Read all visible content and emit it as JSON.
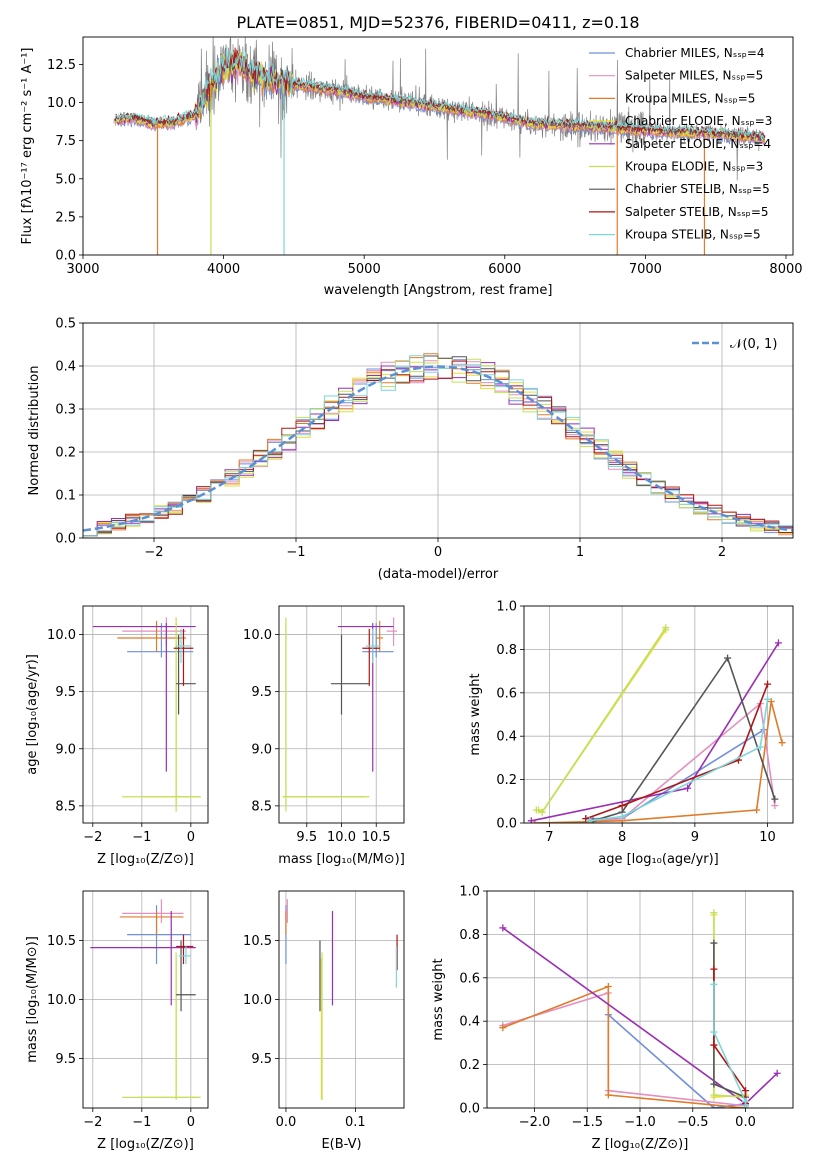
{
  "colors": {
    "chabrier_miles": "#6f8fdc",
    "salpeter_miles": "#e58fbe",
    "kroupa_miles": "#e07b2a",
    "chabrier_elodie": "#e8dc3a",
    "salpeter_elodie": "#9a2fb5",
    "kroupa_elodie": "#c2e05a",
    "chabrier_stelib": "#555555",
    "salpeter_stelib": "#b01515",
    "kroupa_stelib": "#7ed6d8",
    "data": "#7f7f7f",
    "normal": "#5b8fd6"
  },
  "chart_data": [
    {
      "type": "line",
      "title": "PLATE=0851, MJD=52376, FIBERID=0411, z=0.18",
      "xlabel": "wavelength [Angstrom, rest frame]",
      "ylabel": "Flux [fλ10⁻¹⁷ erg cm⁻² s⁻¹ A⁻¹]",
      "xlim": [
        3000,
        8050
      ],
      "ylim": [
        0,
        14.3
      ],
      "xticks": [
        "3000",
        "4000",
        "5000",
        "6000",
        "7000",
        "8000"
      ],
      "yticks": [
        "0.0",
        "2.5",
        "5.0",
        "7.5",
        "10.0",
        "12.5"
      ],
      "legend_position": "right",
      "legend": [
        "Chabrier MILES, Nₛₛₚ=4",
        "Salpeter MILES, Nₛₛₚ=5",
        "Kroupa MILES, Nₛₛₚ=5",
        "Chabrier ELODIE, Nₛₛₚ=3",
        "Salpeter ELODIE, Nₛₛₚ=4",
        "Kroupa ELODIE, Nₛₛₚ=3",
        "Chabrier STELIB, Nₛₛₚ=5",
        "Salpeter STELIB, Nₛₛₚ=5",
        "Kroupa STELIB, Nₛₛₚ=5"
      ],
      "continuum": {
        "x": [
          3220,
          3350,
          3500,
          3650,
          3800,
          3900,
          4000,
          4100,
          4200,
          4300,
          4500,
          4800,
          5000,
          5300,
          5600,
          5900,
          6200,
          6500,
          6800,
          7100,
          7400,
          7700,
          7850
        ],
        "y": [
          8.8,
          9.0,
          8.6,
          8.7,
          9.2,
          11.0,
          12.3,
          12.6,
          12.0,
          11.6,
          11.2,
          10.8,
          10.4,
          10.0,
          9.6,
          9.2,
          8.6,
          8.5,
          8.3,
          8.1,
          8.0,
          7.8,
          7.6
        ]
      },
      "model_dropouts": [
        {
          "series": "Kroupa MILES",
          "x": 3530
        },
        {
          "series": "Kroupa ELODIE",
          "x": 3910
        },
        {
          "series": "Kroupa STELIB",
          "x": 4430
        },
        {
          "series": "Kroupa MILES",
          "x": 6800
        },
        {
          "series": "Kroupa MILES",
          "x": 7420
        }
      ]
    },
    {
      "type": "histogram",
      "xlabel": "(data-model)/error",
      "ylabel": "Normed distribution",
      "xlim": [
        -2.5,
        2.5
      ],
      "ylim": [
        0,
        0.5
      ],
      "xticks": [
        "−2",
        "−1",
        "0",
        "1",
        "2"
      ],
      "yticks": [
        "0.0",
        "0.1",
        "0.2",
        "0.3",
        "0.4",
        "0.5"
      ],
      "grid": true,
      "legend_position": "top-right",
      "legend": [
        "𝒩(0, 1)"
      ],
      "bin_width": 0.1
    },
    {
      "type": "scatter",
      "xlabel": "Z [log₁₀(Z/Z⊙)]",
      "ylabel": "age  [log₁₀(age/yr)]",
      "xlim": [
        -2.2,
        0.35
      ],
      "ylim": [
        8.35,
        10.25
      ],
      "xticks": [
        "−2",
        "−1",
        "0"
      ],
      "yticks": [
        "8.5",
        "9.0",
        "9.5",
        "10.0"
      ],
      "grid": true,
      "points": [
        {
          "series": "Chabrier MILES",
          "x": -0.6,
          "y": 9.85,
          "x_range": [
            -1.3,
            0.05
          ],
          "y_range": [
            9.8,
            10.1
          ]
        },
        {
          "series": "Salpeter MILES",
          "x": -0.5,
          "y": 10.03,
          "x_range": [
            -1.4,
            -0.1
          ],
          "y_range": [
            9.9,
            10.15
          ]
        },
        {
          "series": "Kroupa MILES",
          "x": -0.7,
          "y": 9.97,
          "x_range": [
            -1.5,
            -0.1
          ],
          "y_range": [
            9.85,
            10.12
          ]
        },
        {
          "series": "Chabrier ELODIE",
          "x": -0.3,
          "y": 8.58,
          "x_range": [
            -1.0,
            0.2
          ],
          "y_range": [
            8.5,
            10.1
          ]
        },
        {
          "series": "Salpeter ELODIE",
          "x": -0.5,
          "y": 10.07,
          "x_range": [
            -2.0,
            0.1
          ],
          "y_range": [
            8.8,
            10.1
          ]
        },
        {
          "series": "Kroupa ELODIE",
          "x": -0.3,
          "y": 8.58,
          "x_range": [
            -1.4,
            0.2
          ],
          "y_range": [
            8.45,
            10.15
          ]
        },
        {
          "series": "Chabrier STELIB",
          "x": -0.25,
          "y": 9.57,
          "x_range": [
            -0.3,
            0.1
          ],
          "y_range": [
            9.3,
            10.0
          ]
        },
        {
          "series": "Salpeter STELIB",
          "x": -0.15,
          "y": 9.88,
          "x_range": [
            -0.35,
            0.05
          ],
          "y_range": [
            9.55,
            10.05
          ]
        },
        {
          "series": "Kroupa STELIB",
          "x": -0.2,
          "y": 9.9,
          "x_range": [
            -0.3,
            0.0
          ],
          "y_range": [
            9.75,
            10.05
          ]
        }
      ]
    },
    {
      "type": "scatter",
      "xlabel": "mass [log₁₀(M/M⊙)]",
      "ylabel": "",
      "xlim": [
        9.1,
        10.9
      ],
      "ylim": [
        8.35,
        10.25
      ],
      "xticks": [
        "9.5",
        "10.0",
        "10.5"
      ],
      "yticks": [
        "8.5",
        "9.0",
        "9.5",
        "10.0"
      ],
      "grid": true,
      "points": [
        {
          "series": "Chabrier MILES",
          "x": 10.5,
          "y": 9.85,
          "x_range": [
            10.3,
            10.75
          ],
          "y_range": [
            9.8,
            10.1
          ]
        },
        {
          "series": "Salpeter MILES",
          "x": 10.75,
          "y": 10.03,
          "x_range": [
            10.65,
            10.8
          ],
          "y_range": [
            9.9,
            10.15
          ]
        },
        {
          "series": "Kroupa MILES",
          "x": 10.55,
          "y": 9.97,
          "x_range": [
            10.5,
            10.6
          ],
          "y_range": [
            9.85,
            10.12
          ]
        },
        {
          "series": "Chabrier ELODIE",
          "x": 9.2,
          "y": 8.58,
          "x_range": [
            9.15,
            10.35
          ],
          "y_range": [
            8.5,
            10.1
          ]
        },
        {
          "series": "Salpeter ELODIE",
          "x": 10.45,
          "y": 10.07,
          "x_range": [
            9.95,
            10.75
          ],
          "y_range": [
            8.8,
            10.1
          ]
        },
        {
          "series": "Kroupa ELODIE",
          "x": 9.2,
          "y": 8.58,
          "x_range": [
            9.15,
            10.4
          ],
          "y_range": [
            8.45,
            10.15
          ]
        },
        {
          "series": "Chabrier STELIB",
          "x": 10.0,
          "y": 9.57,
          "x_range": [
            9.85,
            10.4
          ],
          "y_range": [
            9.3,
            10.0
          ]
        },
        {
          "series": "Salpeter STELIB",
          "x": 10.4,
          "y": 9.88,
          "x_range": [
            10.3,
            10.55
          ],
          "y_range": [
            9.55,
            10.05
          ]
        },
        {
          "series": "Kroupa STELIB",
          "x": 10.45,
          "y": 9.9,
          "x_range": [
            10.35,
            10.55
          ],
          "y_range": [
            9.75,
            10.05
          ]
        }
      ]
    },
    {
      "type": "line",
      "xlabel": "age  [log₁₀(age/yr)]",
      "ylabel": "mass weight",
      "xlim": [
        6.65,
        10.35
      ],
      "ylim": [
        0,
        1.0
      ],
      "xticks": [
        "7",
        "8",
        "9",
        "10"
      ],
      "yticks": [
        "0.0",
        "0.2",
        "0.4",
        "0.6",
        "0.8",
        "1.0"
      ],
      "grid": true,
      "series": [
        {
          "name": "Chabrier MILES",
          "x": [
            7.5,
            8.0,
            9.95
          ],
          "y": [
            0.02,
            0.02,
            0.43
          ]
        },
        {
          "name": "Salpeter MILES",
          "x": [
            7.6,
            8.0,
            9.9,
            10.1
          ],
          "y": [
            0.01,
            0.02,
            0.55,
            0.08
          ]
        },
        {
          "name": "Kroupa MILES",
          "x": [
            6.8,
            8.0,
            9.85,
            10.05,
            10.2
          ],
          "y": [
            0.0,
            0.01,
            0.06,
            0.56,
            0.37
          ]
        },
        {
          "name": "Chabrier ELODIE",
          "x": [
            6.85,
            6.9,
            8.6
          ],
          "y": [
            0.06,
            0.05,
            0.89
          ]
        },
        {
          "name": "Salpeter ELODIE",
          "x": [
            6.75,
            8.9,
            10.15
          ],
          "y": [
            0.01,
            0.16,
            0.83
          ]
        },
        {
          "name": "Kroupa ELODIE",
          "x": [
            6.82,
            6.9,
            8.6
          ],
          "y": [
            0.06,
            0.05,
            0.9
          ]
        },
        {
          "name": "Chabrier STELIB",
          "x": [
            7.6,
            8.0,
            9.45,
            10.1
          ],
          "y": [
            0.01,
            0.05,
            0.76,
            0.11
          ]
        },
        {
          "name": "Salpeter STELIB",
          "x": [
            7.5,
            8.0,
            9.6,
            10.0
          ],
          "y": [
            0.02,
            0.08,
            0.29,
            0.64
          ]
        },
        {
          "name": "Kroupa STELIB",
          "x": [
            7.55,
            8.0,
            9.9,
            10.0
          ],
          "y": [
            0.01,
            0.03,
            0.35,
            0.57
          ]
        }
      ]
    },
    {
      "type": "scatter",
      "xlabel": "Z [log₁₀(Z/Z⊙)]",
      "ylabel": "mass [log₁₀(M/M⊙)]",
      "xlim": [
        -2.2,
        0.35
      ],
      "ylim": [
        9.08,
        10.92
      ],
      "xticks": [
        "−2",
        "−1",
        "0"
      ],
      "yticks": [
        "9.5",
        "10.0",
        "10.5"
      ],
      "grid": true,
      "points": [
        {
          "series": "Chabrier MILES",
          "x": -0.7,
          "y": 10.55,
          "x_range": [
            -1.3,
            0.0
          ],
          "y_range": [
            10.3,
            10.8
          ]
        },
        {
          "series": "Salpeter MILES",
          "x": -0.6,
          "y": 10.73,
          "x_range": [
            -1.4,
            -0.15
          ],
          "y_range": [
            10.65,
            10.85
          ]
        },
        {
          "series": "Kroupa MILES",
          "x": -0.7,
          "y": 10.7,
          "x_range": [
            -1.45,
            -0.15
          ],
          "y_range": [
            10.55,
            10.75
          ]
        },
        {
          "series": "Chabrier ELODIE",
          "x": -0.3,
          "y": 9.17,
          "x_range": [
            -1.1,
            0.15
          ],
          "y_range": [
            9.15,
            10.35
          ]
        },
        {
          "series": "Salpeter ELODIE",
          "x": -0.4,
          "y": 10.44,
          "x_range": [
            -2.05,
            0.1
          ],
          "y_range": [
            9.95,
            10.75
          ]
        },
        {
          "series": "Kroupa ELODIE",
          "x": -0.3,
          "y": 9.17,
          "x_range": [
            -1.4,
            0.2
          ],
          "y_range": [
            9.15,
            10.4
          ]
        },
        {
          "series": "Chabrier STELIB",
          "x": -0.2,
          "y": 10.04,
          "x_range": [
            -0.3,
            0.1
          ],
          "y_range": [
            9.9,
            10.5
          ]
        },
        {
          "series": "Salpeter STELIB",
          "x": -0.15,
          "y": 10.45,
          "x_range": [
            -0.3,
            0.05
          ],
          "y_range": [
            10.3,
            10.55
          ]
        },
        {
          "series": "Kroupa STELIB",
          "x": -0.1,
          "y": 10.37,
          "x_range": [
            -0.25,
            0.0
          ],
          "y_range": [
            10.3,
            10.45
          ]
        }
      ]
    },
    {
      "type": "scatter",
      "xlabel": "E(B-V)",
      "ylabel": "",
      "xlim": [
        -0.01,
        0.17
      ],
      "ylim": [
        9.08,
        10.92
      ],
      "xticks": [
        "0.0",
        "0.1"
      ],
      "yticks": [
        "9.5",
        "10.0",
        "10.5"
      ],
      "grid": true,
      "points": [
        {
          "series": "Chabrier MILES",
          "x": 0.0,
          "y": 10.55,
          "y_range": [
            10.3,
            10.8
          ]
        },
        {
          "series": "Salpeter MILES",
          "x": 0.002,
          "y": 10.75,
          "y_range": [
            10.65,
            10.85
          ]
        },
        {
          "series": "Kroupa MILES",
          "x": 0.0,
          "y": 10.65,
          "y_range": [
            10.55,
            10.75
          ]
        },
        {
          "series": "Chabrier ELODIE",
          "x": 0.051,
          "y": 9.8,
          "y_range": [
            9.15,
            10.35
          ]
        },
        {
          "series": "Salpeter ELODIE",
          "x": 0.067,
          "y": 10.38,
          "y_range": [
            9.95,
            10.75
          ]
        },
        {
          "series": "Kroupa ELODIE",
          "x": 0.052,
          "y": 9.8,
          "y_range": [
            9.15,
            10.4
          ]
        },
        {
          "series": "Chabrier STELIB",
          "x": 0.049,
          "y": 10.2,
          "y_range": [
            9.9,
            10.5
          ]
        },
        {
          "series": "Salpeter STELIB",
          "x": 0.16,
          "y": 10.4,
          "y_range": [
            10.25,
            10.55
          ]
        },
        {
          "series": "Kroupa STELIB",
          "x": 0.159,
          "y": 10.3,
          "y_range": [
            10.1,
            10.45
          ]
        }
      ]
    },
    {
      "type": "line",
      "xlabel": "Z [log₁₀(Z/Z⊙)]",
      "ylabel": "mass weight",
      "xlim": [
        -2.45,
        0.45
      ],
      "ylim": [
        0,
        1.0
      ],
      "xticks": [
        "−2.0",
        "−1.5",
        "−1.0",
        "−0.5",
        "0.0"
      ],
      "yticks": [
        "0.0",
        "0.2",
        "0.4",
        "0.6",
        "0.8",
        "1.0"
      ],
      "grid": true,
      "series": [
        {
          "name": "Chabrier MILES",
          "x": [
            -1.3,
            -0.3,
            0.0
          ],
          "y": [
            0.43,
            0.0,
            0.02
          ]
        },
        {
          "name": "Salpeter MILES",
          "x": [
            -2.3,
            -1.3,
            -1.3,
            0.0,
            0.0
          ],
          "y": [
            0.38,
            0.53,
            0.08,
            0.01,
            0.0
          ]
        },
        {
          "name": "Kroupa MILES",
          "x": [
            -2.3,
            -1.3,
            -1.3,
            0.0,
            0.0
          ],
          "y": [
            0.37,
            0.56,
            0.06,
            0.0,
            0.01
          ]
        },
        {
          "name": "Chabrier ELODIE",
          "x": [
            -0.3,
            -0.3,
            0.0
          ],
          "y": [
            0.89,
            0.05,
            0.06
          ]
        },
        {
          "name": "Salpeter ELODIE",
          "x": [
            -2.3,
            0.0,
            0.3
          ],
          "y": [
            0.83,
            0.02,
            0.16
          ]
        },
        {
          "name": "Kroupa ELODIE",
          "x": [
            -0.3,
            -0.3,
            0.0
          ],
          "y": [
            0.9,
            0.06,
            0.05
          ]
        },
        {
          "name": "Chabrier STELIB",
          "x": [
            -0.3,
            -0.3,
            0.0,
            0.0
          ],
          "y": [
            0.76,
            0.11,
            0.05,
            0.01
          ]
        },
        {
          "name": "Salpeter STELIB",
          "x": [
            -0.3,
            -0.3,
            0.0,
            0.0
          ],
          "y": [
            0.64,
            0.29,
            0.08,
            0.02
          ]
        },
        {
          "name": "Kroupa STELIB",
          "x": [
            -0.3,
            -0.3,
            0.0,
            0.0
          ],
          "y": [
            0.57,
            0.35,
            0.03,
            0.01
          ]
        }
      ]
    }
  ]
}
